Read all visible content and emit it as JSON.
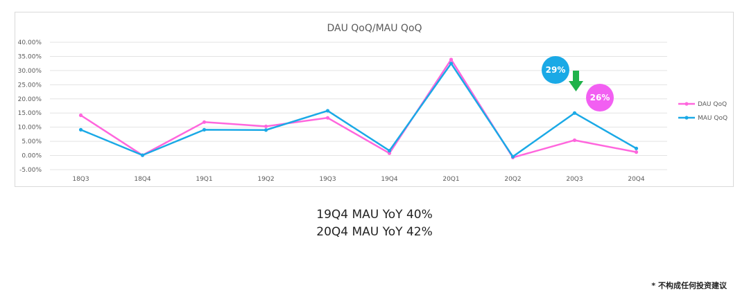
{
  "chart_data": {
    "type": "line",
    "title": "DAU QoQ/MAU QoQ",
    "categories": [
      "18Q3",
      "18Q4",
      "19Q1",
      "19Q2",
      "19Q3",
      "19Q4",
      "20Q1",
      "20Q2",
      "20Q3",
      "20Q4"
    ],
    "series": [
      {
        "name": "DAU QoQ",
        "color": "#ff66dd",
        "values": [
          14.2,
          0.1,
          11.8,
          10.3,
          13.3,
          0.8,
          33.9,
          -0.7,
          5.4,
          1.2
        ]
      },
      {
        "name": "MAU QoQ",
        "color": "#1aa9e6",
        "values": [
          9.1,
          0.1,
          9.1,
          9.0,
          15.8,
          1.7,
          32.5,
          -0.4,
          15.0,
          2.5
        ]
      }
    ],
    "yticks": [
      "40.00%",
      "35.00%",
      "30.00%",
      "25.00%",
      "20.00%",
      "15.00%",
      "10.00%",
      "5.00%",
      "0.00%",
      "-5.00%"
    ],
    "ylim": [
      -5,
      40
    ],
    "grid": true,
    "legend": "right",
    "annotations": [
      {
        "text": "29%",
        "color": "#1aa9e6"
      },
      {
        "text": "26%",
        "color": "#f25ff2"
      }
    ],
    "arrow_color": "#1fb24a"
  },
  "notes": [
    "19Q4 MAU YoY 40%",
    "20Q4 MAU YoY 42%"
  ],
  "disclaimer": "* 不构成任何投资建议"
}
